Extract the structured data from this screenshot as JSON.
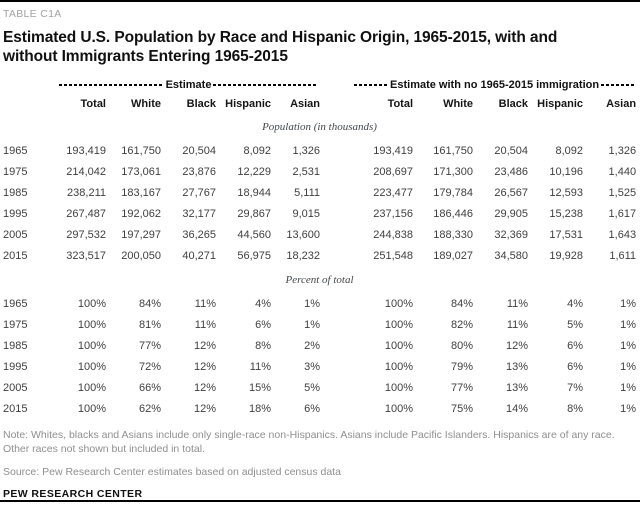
{
  "page": {
    "table_label": "TABLE C1A",
    "title": "Estimated U.S. Population by Race and Hispanic Origin, 1965-2015, with and without Immigrants Entering 1965-2015",
    "note": "Note: Whites, blacks and Asians include only single-race non-Hispanics. Asians include Pacific Islanders. Hispanics are of any race. Other races not shown but included in total.",
    "source": "Source: Pew Research Center estimates based on adjusted census data",
    "footer_brand": "PEW RESEARCH CENTER"
  },
  "colors": {
    "bar_black": "#000000",
    "title_black": "#101010",
    "label_gray": "#a2a2a2",
    "note_gray": "#8f8f8f",
    "data_gray": "#3f3f3f",
    "section_italic_gray": "#43484c"
  },
  "chart_data": {
    "type": "table",
    "group_headers": [
      "Estimate",
      "Estimate with no 1965-2015 immigration"
    ],
    "column_headers": [
      "Total",
      "White",
      "Black",
      "Hispanic",
      "Asian",
      "Total",
      "White",
      "Black",
      "Hispanic",
      "Asian"
    ],
    "sections": [
      {
        "label": "Population (in thousands)",
        "rows": [
          {
            "year": "1965",
            "values": [
              "193,419",
              "161,750",
              "20,504",
              "8,092",
              "1,326",
              "193,419",
              "161,750",
              "20,504",
              "8,092",
              "1,326"
            ]
          },
          {
            "year": "1975",
            "values": [
              "214,042",
              "173,061",
              "23,876",
              "12,229",
              "2,531",
              "208,697",
              "171,300",
              "23,486",
              "10,196",
              "1,440"
            ]
          },
          {
            "year": "1985",
            "values": [
              "238,211",
              "183,167",
              "27,767",
              "18,944",
              "5,111",
              "223,477",
              "179,784",
              "26,567",
              "12,593",
              "1,525"
            ]
          },
          {
            "year": "1995",
            "values": [
              "267,487",
              "192,062",
              "32,177",
              "29,867",
              "9,015",
              "237,156",
              "186,446",
              "29,905",
              "15,238",
              "1,617"
            ]
          },
          {
            "year": "2005",
            "values": [
              "297,532",
              "197,297",
              "36,265",
              "44,560",
              "13,600",
              "244,838",
              "188,330",
              "32,369",
              "17,531",
              "1,643"
            ]
          },
          {
            "year": "2015",
            "values": [
              "323,517",
              "200,050",
              "40,271",
              "56,975",
              "18,232",
              "251,548",
              "189,027",
              "34,580",
              "19,928",
              "1,611"
            ]
          }
        ]
      },
      {
        "label": "Percent of total",
        "rows": [
          {
            "year": "1965",
            "values": [
              "100%",
              "84%",
              "11%",
              "4%",
              "1%",
              "100%",
              "84%",
              "11%",
              "4%",
              "1%"
            ]
          },
          {
            "year": "1975",
            "values": [
              "100%",
              "81%",
              "11%",
              "6%",
              "1%",
              "100%",
              "82%",
              "11%",
              "5%",
              "1%"
            ]
          },
          {
            "year": "1985",
            "values": [
              "100%",
              "77%",
              "12%",
              "8%",
              "2%",
              "100%",
              "80%",
              "12%",
              "6%",
              "1%"
            ]
          },
          {
            "year": "1995",
            "values": [
              "100%",
              "72%",
              "12%",
              "11%",
              "3%",
              "100%",
              "79%",
              "13%",
              "6%",
              "1%"
            ]
          },
          {
            "year": "2005",
            "values": [
              "100%",
              "66%",
              "12%",
              "15%",
              "5%",
              "100%",
              "77%",
              "13%",
              "7%",
              "1%"
            ]
          },
          {
            "year": "2015",
            "values": [
              "100%",
              "62%",
              "12%",
              "18%",
              "6%",
              "100%",
              "75%",
              "14%",
              "8%",
              "1%"
            ]
          }
        ]
      }
    ]
  }
}
